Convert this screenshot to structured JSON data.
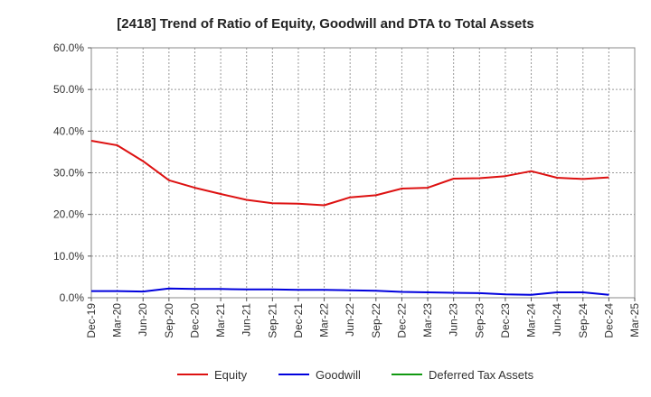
{
  "chart_data": {
    "type": "line",
    "title": "[2418]  Trend of Ratio of Equity, Goodwill and DTA to Total Assets",
    "xlabel": "",
    "ylabel": "",
    "ylim": [
      0,
      60
    ],
    "yticks": [
      0,
      10,
      20,
      30,
      40,
      50,
      60
    ],
    "ytick_labels": [
      "0.0%",
      "10.0%",
      "20.0%",
      "30.0%",
      "40.0%",
      "50.0%",
      "60.0%"
    ],
    "x_categories": [
      "Dec-19",
      "Mar-20",
      "Jun-20",
      "Sep-20",
      "Dec-20",
      "Mar-21",
      "Jun-21",
      "Sep-21",
      "Dec-21",
      "Mar-22",
      "Jun-22",
      "Sep-22",
      "Dec-22",
      "Mar-23",
      "Jun-23",
      "Sep-23",
      "Dec-23",
      "Mar-24",
      "Jun-24",
      "Sep-24",
      "Dec-24",
      "Mar-25"
    ],
    "grid": true,
    "legend_position": "bottom",
    "series": [
      {
        "name": "Equity",
        "color": "#dd1111",
        "values": [
          37.7,
          36.6,
          32.8,
          28.2,
          26.4,
          24.9,
          23.5,
          22.7,
          22.6,
          22.2,
          24.1,
          24.6,
          26.2,
          26.4,
          28.6,
          28.7,
          29.2,
          30.4,
          28.8,
          28.5,
          28.9,
          null
        ]
      },
      {
        "name": "Goodwill",
        "color": "#0000dd",
        "values": [
          1.6,
          1.6,
          1.5,
          2.2,
          2.1,
          2.1,
          2.0,
          2.0,
          1.9,
          1.9,
          1.8,
          1.7,
          1.4,
          1.3,
          1.2,
          1.1,
          0.8,
          0.7,
          1.3,
          1.3,
          0.7,
          null
        ]
      },
      {
        "name": "Deferred Tax Assets",
        "color": "#119911",
        "values": []
      }
    ]
  }
}
